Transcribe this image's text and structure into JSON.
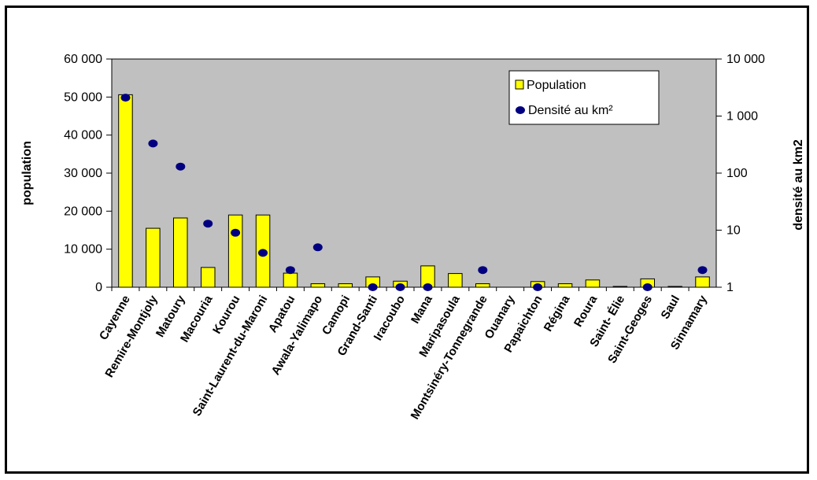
{
  "chart_data": {
    "type": "bar",
    "categories": [
      "Cayenne",
      "Remire-Montjoly",
      "Matoury",
      "Macouria",
      "Kourou",
      "Saint-Laurent-du-Maroni",
      "Apatou",
      "Awala-Yalimapo",
      "Camopi",
      "Grand-Santi",
      "Iracoubo",
      "Mana",
      "Maripasoula",
      "Montsinéry-Tonnegrande",
      "Ouanary",
      "Papaichton",
      "Régina",
      "Roura",
      "Saint- Élie",
      "Saint-Geoges",
      "Saul",
      "Sinnamary"
    ],
    "series": [
      {
        "name": "Population",
        "type": "bar",
        "axis": "left",
        "color": "#ffff00",
        "values": [
          50600,
          15500,
          18200,
          5200,
          19000,
          19000,
          3700,
          900,
          900,
          2700,
          1600,
          5600,
          3600,
          900,
          0,
          1500,
          900,
          1900,
          200,
          2200,
          200,
          2700
        ]
      },
      {
        "name": "Densité au km²",
        "type": "scatter",
        "axis": "right",
        "color": "#000080",
        "values": [
          2100,
          330,
          130,
          13,
          9,
          4,
          2,
          5,
          null,
          1,
          1,
          1,
          null,
          2,
          null,
          1,
          null,
          null,
          null,
          1,
          null,
          2
        ]
      }
    ],
    "y_left": {
      "label": "population",
      "ylim": [
        0,
        60000
      ],
      "ticks": [
        0,
        10000,
        20000,
        30000,
        40000,
        50000,
        60000
      ],
      "tick_labels": [
        "0",
        "10 000",
        "20 000",
        "30 000",
        "40 000",
        "50 000",
        "60 000"
      ]
    },
    "y_right": {
      "label": "densité au km2",
      "scale": "log",
      "ylim": [
        1,
        10000
      ],
      "ticks": [
        1,
        10,
        100,
        1000,
        10000
      ],
      "tick_labels": [
        "1",
        "10",
        "100",
        "1 000",
        "10 000"
      ]
    },
    "grid": false,
    "legend_position": "top-right",
    "plot_background": "#c0c0c0"
  }
}
